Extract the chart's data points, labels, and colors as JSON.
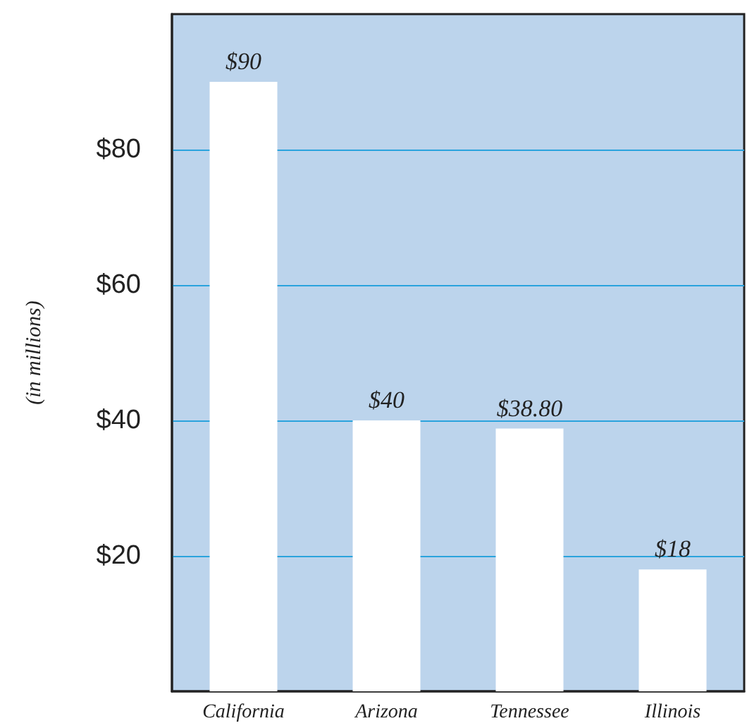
{
  "chart_data": {
    "type": "bar",
    "ylabel": "(in millions)",
    "categories": [
      "California",
      "Arizona",
      "Tennessee",
      "Illinois"
    ],
    "values": [
      90,
      40,
      38.8,
      18
    ],
    "color": "#ffffff",
    "value_labels": [
      "$90",
      "$40",
      "$38.80",
      "$18"
    ],
    "ylim": [
      0,
      100
    ],
    "yticks": [
      {
        "value": 20,
        "label": "$20"
      },
      {
        "value": 40,
        "label": "$40"
      },
      {
        "value": 60,
        "label": "$60"
      },
      {
        "value": 80,
        "label": "$80"
      }
    ],
    "grid": "y"
  }
}
